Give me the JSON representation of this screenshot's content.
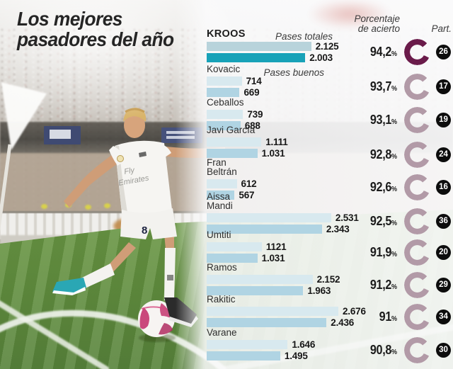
{
  "title": {
    "line1": "Los mejores",
    "line2": "pasadores del año"
  },
  "headers": {
    "accuracy_line1": "Porcentaje",
    "accuracy_line2": "de acierto",
    "participations": "Part."
  },
  "legend": {
    "totals": "Pases totales",
    "goods": "Pases buenos"
  },
  "pct_symbol": "%",
  "colors": {
    "bar_total_highlight": "#b8d3db",
    "bar_good_highlight": "#18a2b8",
    "bar_total": "#d8e9ef",
    "bar_good": "#b0d4e3",
    "ring_highlight": "#6a1b4a",
    "ring": "#b29aa7",
    "badge_bg": "#0d0d0d",
    "badge_text": "#ffffff"
  },
  "photo": {
    "shirt_sponsor": "Fly Emirates",
    "shorts_number": "8"
  },
  "chart_data": {
    "type": "bar",
    "orientation": "horizontal",
    "series_labels": [
      "Pases totales",
      "Pases buenos"
    ],
    "value_axis_max": 2700,
    "players": [
      {
        "name": "KROOS",
        "total": 2125,
        "good": 2003,
        "total_label": "2.125",
        "good_label": "2.003",
        "pct": 94.2,
        "pct_label": "94,2",
        "part": "26",
        "highlight": true
      },
      {
        "name": "Kovacic",
        "total": 714,
        "good": 669,
        "total_label": "714",
        "good_label": "669",
        "pct": 93.7,
        "pct_label": "93,7",
        "part": "17",
        "highlight": false
      },
      {
        "name": "Ceballos",
        "total": 739,
        "good": 688,
        "total_label": "739",
        "good_label": "688",
        "pct": 93.1,
        "pct_label": "93,1",
        "part": "19",
        "highlight": false
      },
      {
        "name": "Javi García",
        "total": 1111,
        "good": 1031,
        "total_label": "1.111",
        "good_label": "1.031",
        "pct": 92.8,
        "pct_label": "92,8",
        "part": "24",
        "highlight": false
      },
      {
        "name": "Fran Beltrán",
        "total": 612,
        "good": 567,
        "total_label": "612",
        "good_label": "567",
        "pct": 92.6,
        "pct_label": "92,6",
        "part": "16",
        "highlight": false
      },
      {
        "name": "Aissa Mandi",
        "total": 2531,
        "good": 2343,
        "total_label": "2.531",
        "good_label": "2.343",
        "pct": 92.5,
        "pct_label": "92,5",
        "part": "36",
        "highlight": false
      },
      {
        "name": "Umtiti",
        "total": 1121,
        "good": 1031,
        "total_label": "1121",
        "good_label": "1.031",
        "pct": 91.9,
        "pct_label": "91,9",
        "part": "20",
        "highlight": false
      },
      {
        "name": "Ramos",
        "total": 2152,
        "good": 1963,
        "total_label": "2.152",
        "good_label": "1.963",
        "pct": 91.2,
        "pct_label": "91,2",
        "part": "29",
        "highlight": false
      },
      {
        "name": "Rakitic",
        "total": 2676,
        "good": 2436,
        "total_label": "2.676",
        "good_label": "2.436",
        "pct": 91.0,
        "pct_label": "91",
        "part": "34",
        "highlight": false
      },
      {
        "name": "Varane",
        "total": 1646,
        "good": 1495,
        "total_label": "1.646",
        "good_label": "1.495",
        "pct": 90.8,
        "pct_label": "90,8",
        "part": "30",
        "highlight": false
      }
    ]
  }
}
